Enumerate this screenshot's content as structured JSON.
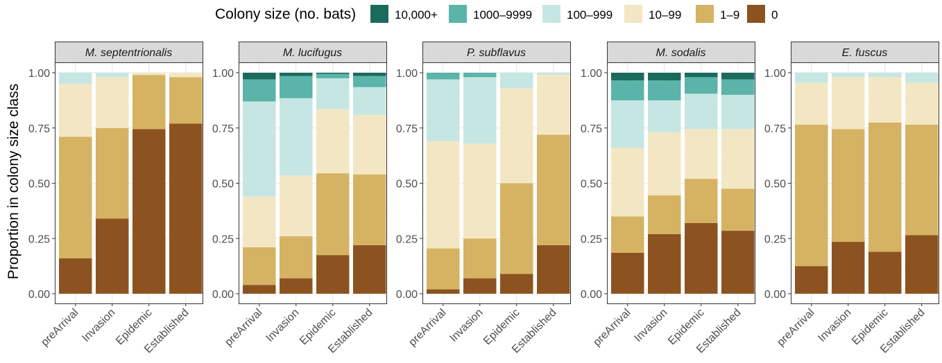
{
  "chart_data": {
    "type": "bar",
    "stacked": true,
    "ylabel": "Proportion in colony size class",
    "xlabel": "",
    "ylim": [
      0,
      1
    ],
    "yticks": [
      0,
      0.25,
      0.5,
      0.75,
      1
    ],
    "ytick_labels": [
      "0.00",
      "0.25",
      "0.50",
      "0.75",
      "1.00"
    ],
    "categories": [
      "preArrival",
      "Invasion",
      "Epidemic",
      "Established"
    ],
    "legend": {
      "title": "Colony size (no. bats)",
      "position": "top",
      "entries": [
        {
          "label": "10,000+",
          "color": "#1a6b5c"
        },
        {
          "label": "1000–9999",
          "color": "#5ab4a9"
        },
        {
          "label": "100–999",
          "color": "#c6e6e3"
        },
        {
          "label": "10–99",
          "color": "#f3e7c3"
        },
        {
          "label": "1–9",
          "color": "#d6b363"
        },
        {
          "label": "0",
          "color": "#8c5321"
        }
      ]
    },
    "stack_order": [
      "0",
      "1–9",
      "10–99",
      "100–999",
      "1000–9999",
      "10,000+"
    ],
    "grid": true,
    "panels": [
      {
        "title": "M. septentrionalis",
        "series": [
          {
            "name": "0",
            "values": [
              0.16,
              0.34,
              0.745,
              0.77
            ]
          },
          {
            "name": "1–9",
            "values": [
              0.55,
              0.41,
              0.245,
              0.21
            ]
          },
          {
            "name": "10–99",
            "values": [
              0.24,
              0.23,
              0.01,
              0.02
            ]
          },
          {
            "name": "100–999",
            "values": [
              0.05,
              0.02,
              0.0,
              0.0
            ]
          },
          {
            "name": "1000–9999",
            "values": [
              0,
              0,
              0,
              0
            ]
          },
          {
            "name": "10,000+",
            "values": [
              0,
              0,
              0,
              0
            ]
          }
        ]
      },
      {
        "title": "M. lucifugus",
        "series": [
          {
            "name": "0",
            "values": [
              0.04,
              0.07,
              0.175,
              0.22
            ]
          },
          {
            "name": "1–9",
            "values": [
              0.17,
              0.19,
              0.37,
              0.32
            ]
          },
          {
            "name": "10–99",
            "values": [
              0.23,
              0.275,
              0.29,
              0.27
            ]
          },
          {
            "name": "100–999",
            "values": [
              0.43,
              0.35,
              0.14,
              0.125
            ]
          },
          {
            "name": "1000–9999",
            "values": [
              0.1,
              0.1,
              0.02,
              0.05
            ]
          },
          {
            "name": "10,000+",
            "values": [
              0.03,
              0.015,
              0.005,
              0.015
            ]
          }
        ]
      },
      {
        "title": "P. subflavus",
        "series": [
          {
            "name": "0",
            "values": [
              0.02,
              0.07,
              0.09,
              0.22
            ]
          },
          {
            "name": "1–9",
            "values": [
              0.185,
              0.18,
              0.41,
              0.5
            ]
          },
          {
            "name": "10–99",
            "values": [
              0.485,
              0.43,
              0.43,
              0.27
            ]
          },
          {
            "name": "100–999",
            "values": [
              0.28,
              0.3,
              0.07,
              0.01
            ]
          },
          {
            "name": "1000–9999",
            "values": [
              0.03,
              0.02,
              0.0,
              0.0
            ]
          },
          {
            "name": "10,000+",
            "values": [
              0,
              0,
              0,
              0
            ]
          }
        ]
      },
      {
        "title": "M. sodalis",
        "series": [
          {
            "name": "0",
            "values": [
              0.185,
              0.27,
              0.32,
              0.285
            ]
          },
          {
            "name": "1–9",
            "values": [
              0.165,
              0.175,
              0.2,
              0.19
            ]
          },
          {
            "name": "10–99",
            "values": [
              0.31,
              0.285,
              0.225,
              0.27
            ]
          },
          {
            "name": "100–999",
            "values": [
              0.215,
              0.145,
              0.16,
              0.155
            ]
          },
          {
            "name": "1000–9999",
            "values": [
              0.09,
              0.09,
              0.075,
              0.07
            ]
          },
          {
            "name": "10,000+",
            "values": [
              0.035,
              0.035,
              0.02,
              0.03
            ]
          }
        ]
      },
      {
        "title": "E. fuscus",
        "series": [
          {
            "name": "0",
            "values": [
              0.125,
              0.235,
              0.19,
              0.265
            ]
          },
          {
            "name": "1–9",
            "values": [
              0.64,
              0.51,
              0.585,
              0.5
            ]
          },
          {
            "name": "10–99",
            "values": [
              0.19,
              0.235,
              0.205,
              0.19
            ]
          },
          {
            "name": "100–999",
            "values": [
              0.045,
              0.02,
              0.02,
              0.045
            ]
          },
          {
            "name": "1000–9999",
            "values": [
              0,
              0,
              0,
              0
            ]
          },
          {
            "name": "10,000+",
            "values": [
              0,
              0,
              0,
              0
            ]
          }
        ]
      }
    ]
  }
}
